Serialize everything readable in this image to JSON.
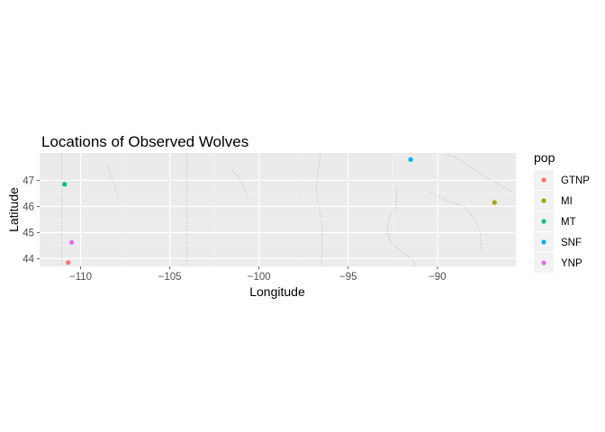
{
  "chart_data": {
    "type": "scatter",
    "title": "Locations of Observed Wolves",
    "xlabel": "Longitude",
    "ylabel": "Latitude",
    "xlim": [
      -112.3,
      -85.6
    ],
    "ylim": [
      43.7,
      48.05
    ],
    "x_ticks": [
      -110,
      -105,
      -100,
      -95,
      -90
    ],
    "y_ticks": [
      44,
      45,
      46,
      47
    ],
    "grid": true,
    "background_map": "state-boundaries",
    "legend": {
      "title": "pop",
      "placement": "right"
    },
    "series": [
      {
        "name": "GTNP",
        "color": "#F8766D",
        "points": [
          {
            "x": -110.7,
            "y": 43.85
          }
        ]
      },
      {
        "name": "MI",
        "color": "#A3A500",
        "points": [
          {
            "x": -86.8,
            "y": 46.15
          }
        ]
      },
      {
        "name": "MT",
        "color": "#00BF7D",
        "points": [
          {
            "x": -110.9,
            "y": 46.85
          }
        ]
      },
      {
        "name": "SNF",
        "color": "#00B0F6",
        "points": [
          {
            "x": -91.5,
            "y": 47.8
          }
        ]
      },
      {
        "name": "YNP",
        "color": "#E76BF3",
        "points": [
          {
            "x": -110.5,
            "y": 44.62
          }
        ]
      }
    ]
  }
}
